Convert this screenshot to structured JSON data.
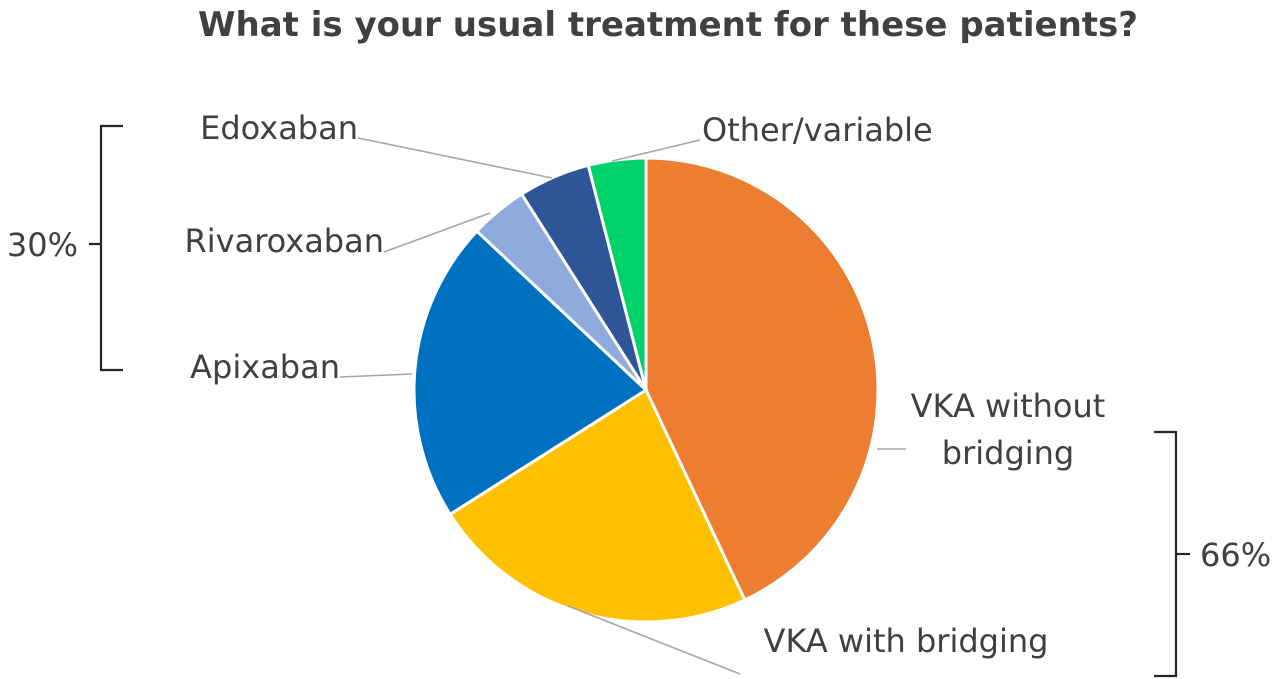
{
  "chart_data": {
    "type": "pie",
    "title": "What is your usual treatment for these patients?",
    "start_angle_deg": 0,
    "direction": "clockwise",
    "slices": [
      {
        "label": "VKA without bridging",
        "label_lines": [
          "VKA without",
          "bridging"
        ],
        "value": 43,
        "color": "#ED7D31"
      },
      {
        "label": "VKA with bridging",
        "label_lines": [
          "VKA with bridging"
        ],
        "value": 23,
        "color": "#FFC000"
      },
      {
        "label": "Apixaban",
        "label_lines": [
          "Apixaban"
        ],
        "value": 21,
        "color": "#0070C0"
      },
      {
        "label": "Rivaroxaban",
        "label_lines": [
          "Rivaroxaban"
        ],
        "value": 4,
        "color": "#8FAADC"
      },
      {
        "label": "Edoxaban",
        "label_lines": [
          "Edoxaban"
        ],
        "value": 5,
        "color": "#2F5597"
      },
      {
        "label": "Other/variable",
        "label_lines": [
          "Other/variable"
        ],
        "value": 4,
        "color": "#00D26A"
      }
    ],
    "groups": [
      {
        "label": "30%",
        "members": [
          "Apixaban",
          "Rivaroxaban",
          "Edoxaban"
        ]
      },
      {
        "label": "66%",
        "members": [
          "VKA without bridging",
          "VKA with bridging"
        ]
      }
    ]
  }
}
